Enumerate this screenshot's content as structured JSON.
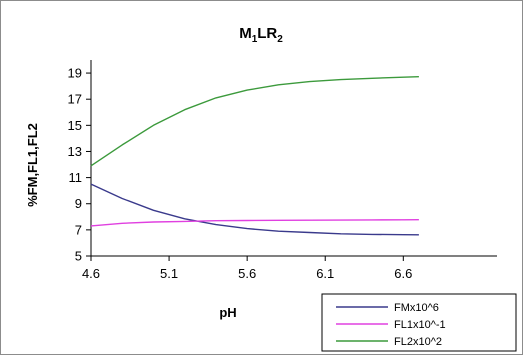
{
  "chart_data": {
    "type": "line",
    "title": {
      "main": "M",
      "sub1": "1",
      "mid": "LR",
      "sub2": "2"
    },
    "xlabel": "pH",
    "ylabel": "%FM,FL1,FL2",
    "xlim": [
      4.6,
      7.2
    ],
    "ylim": [
      5,
      20
    ],
    "x_ticks": [
      4.6,
      5.1,
      5.6,
      6.1,
      6.6
    ],
    "x_tick_labels": [
      "4.6",
      "5.1",
      "5.6",
      "6.1",
      "6.6"
    ],
    "y_ticks": [
      5,
      7,
      9,
      11,
      13,
      15,
      17,
      19
    ],
    "y_tick_labels": [
      "5",
      "7",
      "9",
      "11",
      "13",
      "15",
      "17",
      "19"
    ],
    "grid": false,
    "legend_position": "bottom-right",
    "series": [
      {
        "name": "FMx10^6",
        "color": "#3a3a8c",
        "x": [
          4.6,
          4.8,
          5.0,
          5.2,
          5.4,
          5.6,
          5.8,
          6.0,
          6.2,
          6.4,
          6.6,
          6.7
        ],
        "values": [
          10.5,
          9.4,
          8.5,
          7.85,
          7.4,
          7.1,
          6.9,
          6.8,
          6.7,
          6.65,
          6.63,
          6.62
        ]
      },
      {
        "name": "FL1x10^-1",
        "color": "#e040e0",
        "x": [
          4.6,
          4.8,
          5.0,
          5.2,
          5.4,
          5.6,
          5.8,
          6.0,
          6.2,
          6.4,
          6.6,
          6.7
        ],
        "values": [
          7.3,
          7.5,
          7.6,
          7.65,
          7.7,
          7.72,
          7.73,
          7.74,
          7.75,
          7.76,
          7.77,
          7.78
        ]
      },
      {
        "name": "FL2x10^2",
        "color": "#3c9a3c",
        "x": [
          4.6,
          4.8,
          5.0,
          5.2,
          5.4,
          5.6,
          5.8,
          6.0,
          6.2,
          6.4,
          6.6,
          6.7
        ],
        "values": [
          11.9,
          13.5,
          15.0,
          16.2,
          17.1,
          17.7,
          18.1,
          18.35,
          18.5,
          18.6,
          18.68,
          18.72
        ]
      }
    ]
  }
}
